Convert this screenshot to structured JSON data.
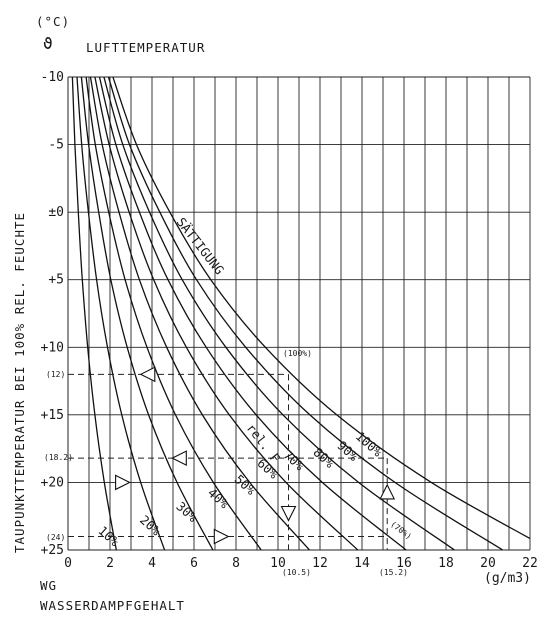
{
  "chart_data": {
    "type": "line",
    "title": "LUFTTEMPERATUR",
    "unit_top": "(°C)",
    "theta_symbol": "ϑ",
    "xlabel": "WG",
    "xlabel2": "WASSERDAMPFGEHALT",
    "xunit": "(g/m3)",
    "ylabel": "TAUPUNKTTEMPERATUR BEI 100% REL. FEUCHTE",
    "x_ticks": [
      "0",
      "2",
      "4",
      "6",
      "8",
      "10",
      "12",
      "14",
      "16",
      "18",
      "20",
      "22"
    ],
    "y_ticks": [
      "-10",
      "-5",
      "±0",
      "+5",
      "+10",
      "+15",
      "+20",
      "+25"
    ],
    "xlim": [
      0,
      22
    ],
    "ylim": [
      -10,
      25
    ],
    "grid": true,
    "saturation_label": "SÄTTIGUNG",
    "rh_label": "rel. F",
    "series": [
      {
        "name": "100%",
        "points": [
          [
            2.14,
            -10
          ],
          [
            3.26,
            -5
          ],
          [
            4.85,
            0
          ],
          [
            6.8,
            5
          ],
          [
            9.4,
            10
          ],
          [
            12.8,
            15
          ],
          [
            17.3,
            20
          ],
          [
            23.0,
            25
          ]
        ]
      },
      {
        "name": "90%",
        "points": [
          [
            1.93,
            -10
          ],
          [
            2.93,
            -5
          ],
          [
            4.37,
            0
          ],
          [
            6.12,
            5
          ],
          [
            8.46,
            10
          ],
          [
            11.52,
            15
          ],
          [
            15.57,
            20
          ],
          [
            20.7,
            25
          ]
        ]
      },
      {
        "name": "80%",
        "points": [
          [
            1.71,
            -10
          ],
          [
            2.61,
            -5
          ],
          [
            3.88,
            0
          ],
          [
            5.44,
            5
          ],
          [
            7.52,
            10
          ],
          [
            10.24,
            15
          ],
          [
            13.84,
            20
          ],
          [
            18.4,
            25
          ]
        ]
      },
      {
        "name": "70%",
        "points": [
          [
            1.5,
            -10
          ],
          [
            2.28,
            -5
          ],
          [
            3.4,
            0
          ],
          [
            4.76,
            5
          ],
          [
            6.58,
            10
          ],
          [
            8.96,
            15
          ],
          [
            12.11,
            20
          ],
          [
            16.1,
            25
          ]
        ]
      },
      {
        "name": "60%",
        "points": [
          [
            1.28,
            -10
          ],
          [
            1.96,
            -5
          ],
          [
            2.91,
            0
          ],
          [
            4.08,
            5
          ],
          [
            5.64,
            10
          ],
          [
            7.68,
            15
          ],
          [
            10.38,
            20
          ],
          [
            13.8,
            25
          ]
        ]
      },
      {
        "name": "50%",
        "points": [
          [
            1.07,
            -10
          ],
          [
            1.63,
            -5
          ],
          [
            2.43,
            0
          ],
          [
            3.4,
            5
          ],
          [
            4.7,
            10
          ],
          [
            6.4,
            15
          ],
          [
            8.65,
            20
          ],
          [
            11.5,
            25
          ]
        ]
      },
      {
        "name": "40%",
        "points": [
          [
            0.86,
            -10
          ],
          [
            1.3,
            -5
          ],
          [
            1.94,
            0
          ],
          [
            2.72,
            5
          ],
          [
            3.76,
            10
          ],
          [
            5.12,
            15
          ],
          [
            6.92,
            20
          ],
          [
            9.2,
            25
          ]
        ]
      },
      {
        "name": "30%",
        "points": [
          [
            0.64,
            -10
          ],
          [
            0.98,
            -5
          ],
          [
            1.46,
            0
          ],
          [
            2.04,
            5
          ],
          [
            2.82,
            10
          ],
          [
            3.84,
            15
          ],
          [
            5.19,
            20
          ],
          [
            6.9,
            25
          ]
        ]
      },
      {
        "name": "20%",
        "points": [
          [
            0.43,
            -10
          ],
          [
            0.65,
            -5
          ],
          [
            0.97,
            0
          ],
          [
            1.36,
            5
          ],
          [
            1.88,
            10
          ],
          [
            2.56,
            15
          ],
          [
            3.46,
            20
          ],
          [
            4.6,
            25
          ]
        ]
      },
      {
        "name": "10%",
        "points": [
          [
            0.21,
            -10
          ],
          [
            0.33,
            -5
          ],
          [
            0.49,
            0
          ],
          [
            0.68,
            5
          ],
          [
            0.94,
            10
          ],
          [
            1.28,
            15
          ],
          [
            1.73,
            20
          ],
          [
            2.3,
            25
          ]
        ]
      }
    ],
    "annotations": {
      "y_12": "(12)",
      "y_18_2": "(18.2)",
      "y_24": "(24)",
      "x_10_5": "(10.5)",
      "x_15_2": "(15.2)",
      "p100": "(100%)",
      "p70": "(70%)"
    }
  }
}
